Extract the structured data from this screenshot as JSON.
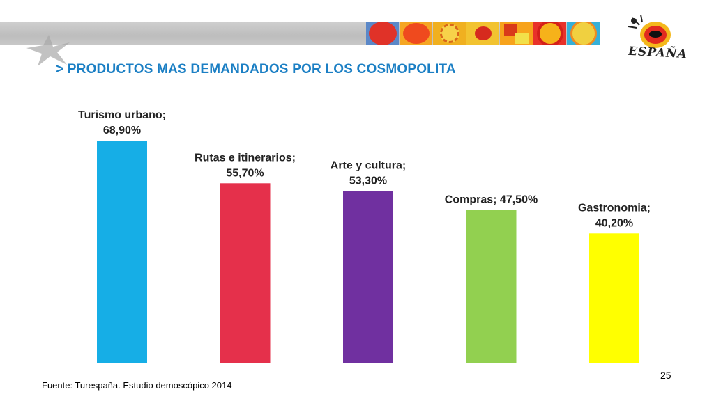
{
  "title": "> PRODUCTOS MAS DEMANDADOS POR LOS COSMOPOLITA",
  "source": "Fuente: Turespaña. Estudio demoscópico 2014",
  "page_number": "25",
  "logo_text": "ESPAÑA",
  "colors": {
    "title": "#1b7fc4",
    "bars": [
      "#16aee6",
      "#e5304b",
      "#7030a0",
      "#92d050",
      "#ffff00"
    ]
  },
  "chart_data": {
    "type": "bar",
    "title": "",
    "xlabel": "",
    "ylabel": "",
    "ylim": [
      0,
      68.9
    ],
    "categories": [
      "Turismo urbano",
      "Rutas e itinerarios",
      "Arte y cultura",
      "Compras",
      "Gastronomia"
    ],
    "values": [
      68.9,
      55.7,
      53.3,
      47.5,
      40.2
    ],
    "data_labels": [
      [
        "Turismo urbano;",
        "68,90%"
      ],
      [
        "Rutas e itinerarios;",
        "55,70%"
      ],
      [
        "Arte y cultura;",
        "53,30%"
      ],
      [
        "Compras; 47,50%"
      ],
      [
        "Gastronomia;",
        "40,20%"
      ]
    ]
  }
}
